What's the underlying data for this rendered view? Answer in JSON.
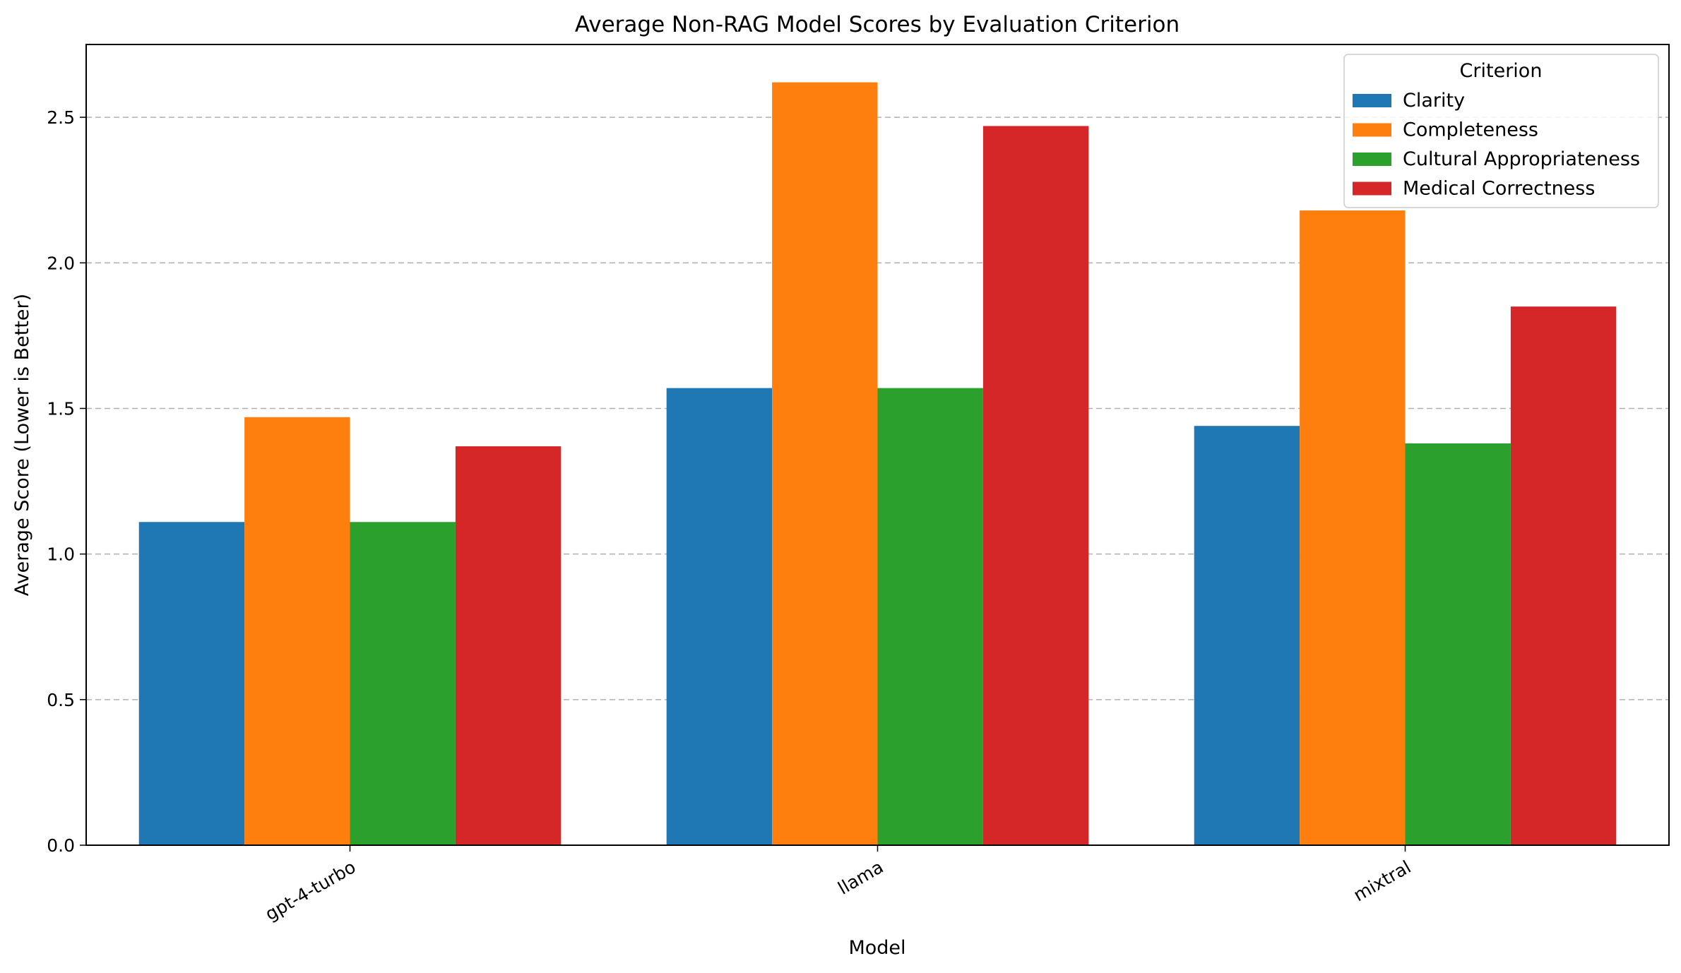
{
  "chart_data": {
    "type": "bar",
    "title": "Average Non-RAG Model Scores by Evaluation Criterion",
    "xlabel": "Model",
    "ylabel": "Average Score (Lower is Better)",
    "categories": [
      "gpt-4-turbo",
      "llama",
      "mixtral"
    ],
    "ylim": [
      0,
      2.75
    ],
    "yticks": [
      0.0,
      0.5,
      1.0,
      1.5,
      2.0,
      2.5
    ],
    "ytick_labels": [
      "0.0",
      "0.5",
      "1.0",
      "1.5",
      "2.0",
      "2.5"
    ],
    "grid": "y, dashed",
    "legend": {
      "title": "Criterion",
      "position": "top-right"
    },
    "series": [
      {
        "name": "Clarity",
        "color": "#1f77b4",
        "values": [
          1.11,
          1.57,
          1.44
        ]
      },
      {
        "name": "Completeness",
        "color": "#ff7f0e",
        "values": [
          1.47,
          2.62,
          2.18
        ]
      },
      {
        "name": "Cultural Appropriateness",
        "color": "#2ca02c",
        "values": [
          1.11,
          1.57,
          1.38
        ]
      },
      {
        "name": "Medical Correctness",
        "color": "#d62728",
        "values": [
          1.37,
          2.47,
          1.85
        ]
      }
    ]
  }
}
